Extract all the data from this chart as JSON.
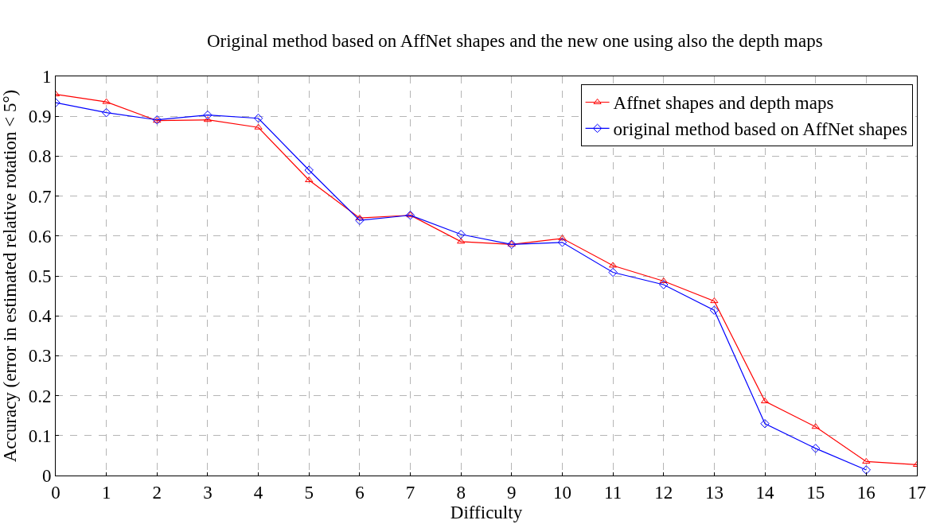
{
  "chart_data": {
    "type": "line",
    "title": "Original method based on AffNet shapes and the new one using also the depth maps",
    "xlabel": "Difficulty",
    "ylabel": "Accuracy (error in estimated relative rotation < 5°)",
    "x": [
      0,
      1,
      2,
      3,
      4,
      5,
      6,
      7,
      8,
      9,
      10,
      11,
      12,
      13,
      14,
      15,
      16,
      17
    ],
    "series": [
      {
        "name": "Affnet shapes and depth maps",
        "color": "#ff0000",
        "marker": "triangle",
        "values": [
          0.955,
          0.936,
          0.889,
          0.891,
          0.872,
          0.74,
          0.645,
          0.652,
          0.586,
          0.579,
          0.594,
          0.526,
          0.487,
          0.437,
          0.186,
          0.122,
          0.035,
          0.027
        ]
      },
      {
        "name": "original method based on AffNet shapes",
        "color": "#0000ff",
        "marker": "diamond",
        "values": [
          0.934,
          0.909,
          0.891,
          0.903,
          0.895,
          0.765,
          0.639,
          0.652,
          0.604,
          0.579,
          0.584,
          0.509,
          0.478,
          0.414,
          0.13,
          0.068,
          0.014,
          null
        ]
      }
    ],
    "xlim": [
      0,
      17
    ],
    "xticks": [
      0,
      1,
      2,
      3,
      4,
      5,
      6,
      7,
      8,
      9,
      10,
      11,
      12,
      13,
      14,
      15,
      16,
      17
    ],
    "ylim": [
      0,
      1
    ],
    "yticks": [
      0,
      0.1,
      0.2,
      0.3,
      0.4,
      0.5,
      0.6,
      0.7,
      0.8,
      0.9,
      1
    ],
    "grid": true,
    "legend": "top right",
    "line_style": "solid"
  }
}
